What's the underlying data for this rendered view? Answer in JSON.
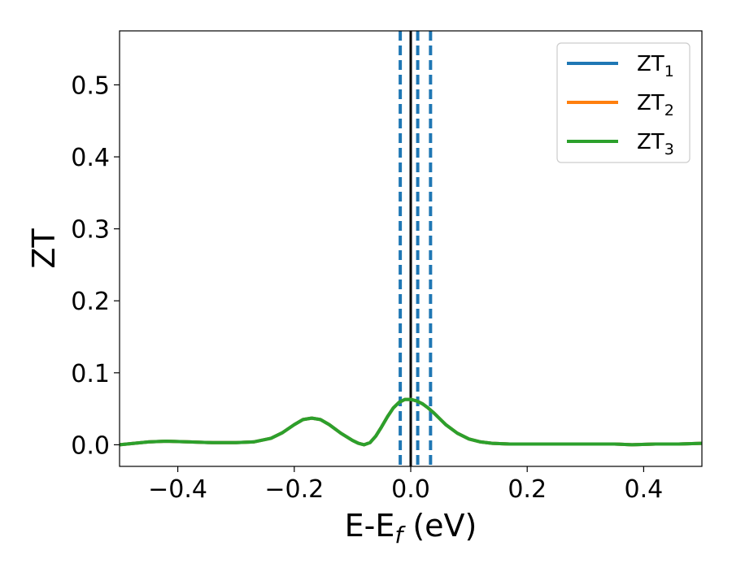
{
  "chart_data": {
    "type": "line",
    "title": "",
    "xlabel": "E-E",
    "xlabel_sub": "f",
    "xlabel_suffix": " (eV)",
    "ylabel": "ZT",
    "xlim": [
      -0.5,
      0.5
    ],
    "ylim": [
      -0.03,
      0.575
    ],
    "xticks": [
      -0.4,
      -0.2,
      0.0,
      0.2,
      0.4
    ],
    "xtick_labels": [
      "−0.4",
      "−0.2",
      "0.0",
      "0.2",
      "0.4"
    ],
    "yticks": [
      0.0,
      0.1,
      0.2,
      0.3,
      0.4,
      0.5
    ],
    "ytick_labels": [
      "0.0",
      "0.1",
      "0.2",
      "0.3",
      "0.4",
      "0.5"
    ],
    "legend_position": "top-right",
    "grid": false,
    "vlines": [
      {
        "x": 0.0,
        "color": "#000000",
        "style": "solid"
      },
      {
        "x": -0.018,
        "color": "#1f77b4",
        "style": "dashed"
      },
      {
        "x": 0.012,
        "color": "#1f77b4",
        "style": "dashed"
      },
      {
        "x": 0.034,
        "color": "#1f77b4",
        "style": "dashed"
      }
    ],
    "x": [
      -0.5,
      -0.45,
      -0.42,
      -0.38,
      -0.34,
      -0.3,
      -0.27,
      -0.24,
      -0.22,
      -0.2,
      -0.185,
      -0.17,
      -0.155,
      -0.14,
      -0.12,
      -0.1,
      -0.09,
      -0.08,
      -0.07,
      -0.06,
      -0.05,
      -0.04,
      -0.03,
      -0.02,
      -0.01,
      0.0,
      0.01,
      0.02,
      0.03,
      0.04,
      0.05,
      0.06,
      0.08,
      0.1,
      0.12,
      0.14,
      0.17,
      0.2,
      0.25,
      0.3,
      0.35,
      0.38,
      0.42,
      0.46,
      0.5
    ],
    "series": [
      {
        "name_base": "ZT",
        "name_sub": "1",
        "color": "#1f77b4",
        "values": [
          0.0,
          0.004,
          0.005,
          0.004,
          0.003,
          0.003,
          0.004,
          0.009,
          0.017,
          0.028,
          0.035,
          0.037,
          0.035,
          0.028,
          0.016,
          0.006,
          0.002,
          0.0,
          0.003,
          0.012,
          0.025,
          0.039,
          0.051,
          0.059,
          0.063,
          0.063,
          0.061,
          0.057,
          0.051,
          0.044,
          0.036,
          0.028,
          0.016,
          0.008,
          0.004,
          0.002,
          0.001,
          0.001,
          0.001,
          0.001,
          0.001,
          0.0,
          0.001,
          0.001,
          0.002
        ]
      },
      {
        "name_base": "ZT",
        "name_sub": "2",
        "color": "#ff7f0e",
        "values": [
          0.0,
          0.004,
          0.005,
          0.004,
          0.003,
          0.003,
          0.004,
          0.009,
          0.017,
          0.028,
          0.035,
          0.037,
          0.035,
          0.028,
          0.016,
          0.006,
          0.002,
          0.0,
          0.003,
          0.012,
          0.025,
          0.039,
          0.051,
          0.059,
          0.063,
          0.063,
          0.061,
          0.057,
          0.051,
          0.044,
          0.036,
          0.028,
          0.016,
          0.008,
          0.004,
          0.002,
          0.001,
          0.001,
          0.001,
          0.001,
          0.001,
          0.0,
          0.001,
          0.001,
          0.002
        ]
      },
      {
        "name_base": "ZT",
        "name_sub": "3",
        "color": "#2ca02c",
        "values": [
          0.0,
          0.004,
          0.005,
          0.004,
          0.003,
          0.003,
          0.004,
          0.009,
          0.017,
          0.028,
          0.035,
          0.037,
          0.035,
          0.028,
          0.016,
          0.006,
          0.002,
          0.0,
          0.003,
          0.012,
          0.025,
          0.039,
          0.051,
          0.059,
          0.063,
          0.063,
          0.061,
          0.057,
          0.051,
          0.044,
          0.036,
          0.028,
          0.016,
          0.008,
          0.004,
          0.002,
          0.001,
          0.001,
          0.001,
          0.001,
          0.001,
          0.0,
          0.001,
          0.001,
          0.002
        ]
      }
    ]
  }
}
